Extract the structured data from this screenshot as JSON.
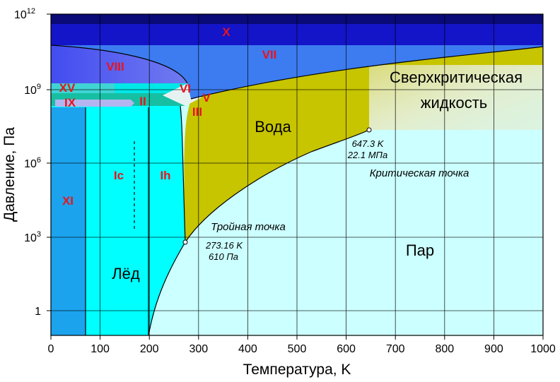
{
  "axes": {
    "xlabel": "Температура, K",
    "ylabel": "Давление, Па",
    "x_ticks": [
      "0",
      "100",
      "200",
      "300",
      "400",
      "500",
      "600",
      "700",
      "800",
      "900",
      "1000"
    ],
    "y_ticks": {
      "base_12": "10",
      "exp_12": "12",
      "base_9": "10",
      "exp_9": "9",
      "base_6": "10",
      "exp_6": "6",
      "base_3": "10",
      "exp_3": "3",
      "one": "1"
    }
  },
  "phases": {
    "X": "X",
    "VII": "VII",
    "VIII": "VIII",
    "XV": "XV",
    "VI": "VI",
    "V": "V",
    "IX": "IX",
    "II": "II",
    "III": "III",
    "XI": "XI",
    "Ic": "Ic",
    "Ih": "Ih",
    "ice": "Лёд",
    "water": "Вода",
    "vapor": "Пар",
    "supercritical_1": "Сверхкритическая",
    "supercritical_2": "жидкость"
  },
  "annotations": {
    "triple_title": "Тройная точка",
    "triple_T": "273.16 K",
    "triple_P": "610 Па",
    "critical_title": "Критическая точка",
    "critical_T": "647.3 K",
    "critical_P": "22.1 МПа"
  },
  "colors": {
    "vapor": "#ccffff",
    "ice_ih": "#00ffff",
    "ice_xi": "#1ba3ee",
    "water": "#c7c400",
    "vii": "#3c7cf0",
    "x": "#1414c8",
    "top": "#0a0a78"
  }
}
